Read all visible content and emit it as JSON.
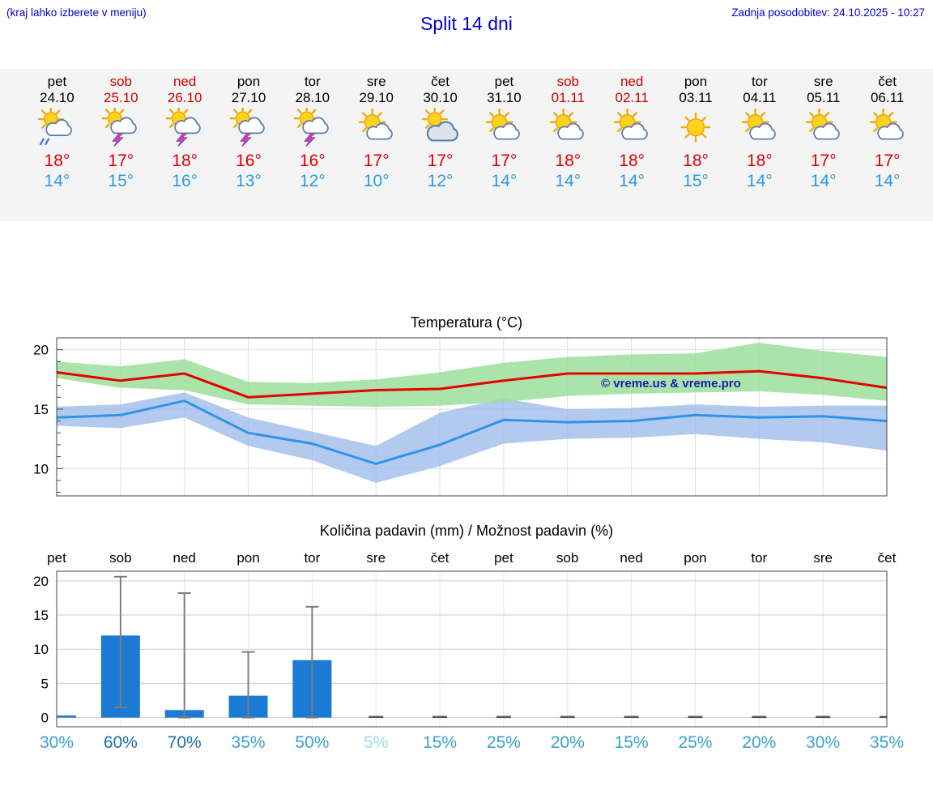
{
  "header": {
    "hint": "(kraj lahko izberete v meniju)",
    "title": "Split 14 dni",
    "updated": "Zadnja posodobitev: 24.10.2025 - 10:27"
  },
  "forecast": {
    "days": [
      {
        "name": "pet",
        "date": "24.10",
        "weekend": false,
        "icon": "sun-cloud-rain",
        "high": "18°",
        "low": "14°"
      },
      {
        "name": "sob",
        "date": "25.10",
        "weekend": true,
        "icon": "sun-cloud-storm",
        "high": "17°",
        "low": "15°"
      },
      {
        "name": "ned",
        "date": "26.10",
        "weekend": true,
        "icon": "sun-cloud-storm",
        "high": "18°",
        "low": "16°"
      },
      {
        "name": "pon",
        "date": "27.10",
        "weekend": false,
        "icon": "sun-cloud-storm",
        "high": "16°",
        "low": "13°"
      },
      {
        "name": "tor",
        "date": "28.10",
        "weekend": false,
        "icon": "sun-cloud-storm",
        "high": "16°",
        "low": "12°"
      },
      {
        "name": "sre",
        "date": "29.10",
        "weekend": false,
        "icon": "sun-cloud",
        "high": "17°",
        "low": "10°"
      },
      {
        "name": "čet",
        "date": "30.10",
        "weekend": false,
        "icon": "cloud-sun",
        "high": "17°",
        "low": "12°"
      },
      {
        "name": "pet",
        "date": "31.10",
        "weekend": false,
        "icon": "sun-cloud",
        "high": "17°",
        "low": "14°"
      },
      {
        "name": "sob",
        "date": "01.11",
        "weekend": true,
        "icon": "sun-cloud",
        "high": "18°",
        "low": "14°"
      },
      {
        "name": "ned",
        "date": "02.11",
        "weekend": true,
        "icon": "sun-cloud",
        "high": "18°",
        "low": "14°"
      },
      {
        "name": "pon",
        "date": "03.11",
        "weekend": false,
        "icon": "sun",
        "high": "18°",
        "low": "15°"
      },
      {
        "name": "tor",
        "date": "04.11",
        "weekend": false,
        "icon": "sun-cloud",
        "high": "18°",
        "low": "14°"
      },
      {
        "name": "sre",
        "date": "05.11",
        "weekend": false,
        "icon": "sun-cloud",
        "high": "17°",
        "low": "14°"
      },
      {
        "name": "čet",
        "date": "06.11",
        "weekend": false,
        "icon": "sun-cloud",
        "high": "17°",
        "low": "14°"
      }
    ]
  },
  "chart_data": [
    {
      "type": "line",
      "title": "Temperatura (°C)",
      "watermark": "© vreme.us & vreme.pro",
      "ylim": [
        7.7,
        21.0
      ],
      "yticks": [
        10,
        15,
        20
      ],
      "grid": true,
      "series": [
        {
          "name": "temp-max",
          "color": "#e60000",
          "values": [
            18.1,
            17.4,
            18.0,
            16.0,
            16.3,
            16.6,
            16.7,
            17.4,
            18.0,
            18.0,
            18.0,
            18.2,
            17.6,
            16.8
          ]
        },
        {
          "name": "temp-min",
          "color": "#2f94e8",
          "values": [
            14.3,
            14.5,
            15.7,
            13.0,
            12.1,
            10.4,
            12.0,
            14.1,
            13.9,
            14.0,
            14.5,
            14.3,
            14.4,
            14.0
          ]
        }
      ],
      "bands": [
        {
          "name": "temp-max-range",
          "color": "#9bdf9b",
          "opacity": 0.85,
          "upper": [
            19.0,
            18.6,
            19.2,
            17.3,
            17.2,
            17.5,
            18.1,
            18.9,
            19.4,
            19.6,
            19.7,
            20.6,
            19.9,
            19.4
          ],
          "lower": [
            17.6,
            16.8,
            16.6,
            15.4,
            15.3,
            15.2,
            15.3,
            15.6,
            16.1,
            16.3,
            16.4,
            16.5,
            16.2,
            15.7
          ]
        },
        {
          "name": "temp-min-range",
          "color": "#9ab8ea",
          "opacity": 0.75,
          "upper": [
            15.2,
            15.4,
            16.4,
            14.3,
            13.1,
            11.9,
            14.7,
            15.9,
            15.0,
            15.1,
            15.4,
            15.2,
            15.3,
            15.3
          ],
          "lower": [
            13.6,
            13.4,
            14.3,
            11.9,
            10.7,
            8.8,
            10.2,
            12.1,
            12.5,
            12.6,
            12.9,
            12.5,
            12.2,
            11.5
          ]
        }
      ]
    },
    {
      "type": "bar",
      "title": "Količina padavin (mm) / Možnost padavin (%)",
      "day_labels": [
        "pet",
        "sob",
        "ned",
        "pon",
        "tor",
        "sre",
        "čet",
        "pet",
        "sob",
        "ned",
        "pon",
        "tor",
        "sre",
        "čet"
      ],
      "ylim": [
        -1.35,
        21.4
      ],
      "yticks": [
        0,
        5,
        10,
        15,
        20
      ],
      "bar_color": "#1a7ad4",
      "values": [
        0.3,
        12.0,
        1.1,
        3.2,
        8.4,
        0,
        0,
        0,
        0,
        0,
        0,
        0,
        0,
        0
      ],
      "whiskers": [
        null,
        [
          1.5,
          20.6
        ],
        [
          0,
          18.2
        ],
        [
          0,
          9.6
        ],
        [
          0,
          16.2
        ],
        null,
        null,
        null,
        null,
        null,
        null,
        null,
        null,
        null
      ],
      "probabilities": [
        {
          "label": "30%",
          "color": "#3e9fd2"
        },
        {
          "label": "60%",
          "color": "#1d6fa6"
        },
        {
          "label": "70%",
          "color": "#1d6fa6"
        },
        {
          "label": "35%",
          "color": "#3e9fd2"
        },
        {
          "label": "50%",
          "color": "#3e9fd2"
        },
        {
          "label": "5%",
          "color": "#9fdce8"
        },
        {
          "label": "15%",
          "color": "#3e9fd2"
        },
        {
          "label": "25%",
          "color": "#3e9fd2"
        },
        {
          "label": "20%",
          "color": "#3e9fd2"
        },
        {
          "label": "15%",
          "color": "#3e9fd2"
        },
        {
          "label": "25%",
          "color": "#3e9fd2"
        },
        {
          "label": "20%",
          "color": "#3e9fd2"
        },
        {
          "label": "30%",
          "color": "#3e9fd2"
        },
        {
          "label": "35%",
          "color": "#3e9fd2"
        }
      ]
    }
  ]
}
